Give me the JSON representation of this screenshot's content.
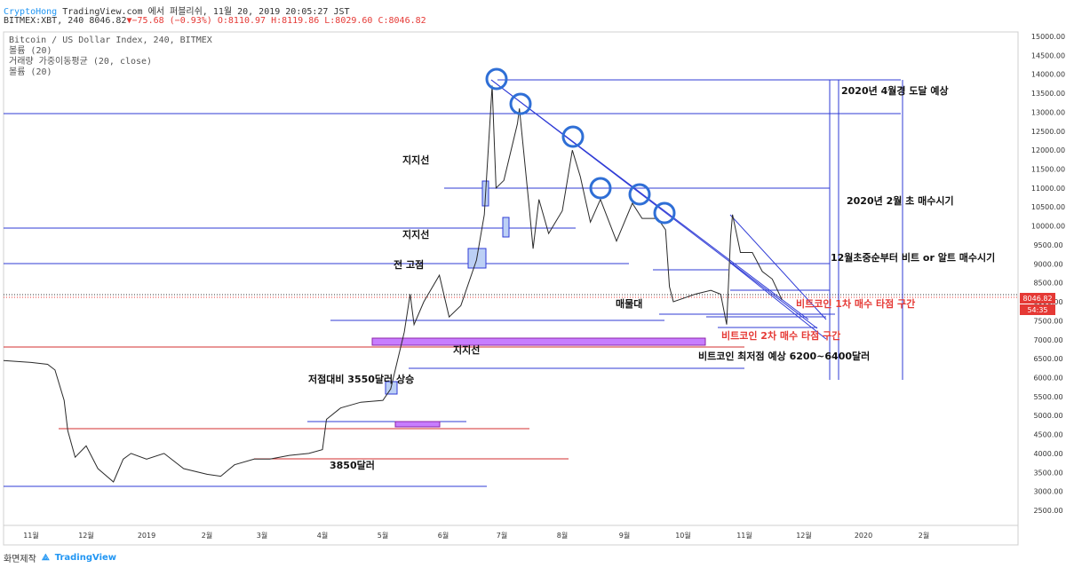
{
  "header": {
    "author": "CryptoHong",
    "published": "TradingView.com 에서 퍼블리쉬, 11월 20, 2019 20:05:27 JST",
    "symbol_info": "BITMEX:XBT, 240 8046.82",
    "change": "−75.68 (−0.93%)",
    "ohlc": "O:8110.97 H:8119.86 L:8029.60 C:8046.82"
  },
  "legend": {
    "line1": "Bitcoin / US Dollar Index, 240, BITMEX",
    "line2": "볼륨 (20)",
    "line3": "거래량 가중이동평균 (20, close)",
    "line4": "볼륨 (20)"
  },
  "price_labels": {
    "last_price": "8046.82",
    "countdown": "54:35"
  },
  "annotations": {
    "target_2020_04": "2020년 4월경 도달 예상",
    "buy_2020_02": "2020년 2월 초 매수시기",
    "buy_dec": "12월초중순부터 비트 or 알트 매수시기",
    "support1": "지지선",
    "support2": "지지선",
    "prev_high": "전 고점",
    "sell_wall": "매물대",
    "buy_zone_1": "비트코인 1차 매수 타점 구간",
    "buy_zone_2": "비트코인 2차 매수 타점 구간",
    "support3": "지지선",
    "lowest_est": "비트코인 최저점 예상 6200~6400달러",
    "rise_from_low": "저점대비 3550달러 상승",
    "price_3850": "3850달러"
  },
  "footer": {
    "made_with": "화면제작",
    "brand": "TradingView"
  },
  "chart_data": {
    "type": "line",
    "title": "Bitcoin / US Dollar Index, 240, BITMEX",
    "xlabel": "",
    "ylabel": "",
    "x_ticks": [
      "11월",
      "12월",
      "2019",
      "2월",
      "3월",
      "4월",
      "5월",
      "6월",
      "7월",
      "8월",
      "9월",
      "10월",
      "11월",
      "12월",
      "2020",
      "2월"
    ],
    "y_ticks": [
      2500,
      3000,
      3500,
      4000,
      4500,
      5000,
      5500,
      6000,
      6500,
      7000,
      7500,
      8000,
      8500,
      9000,
      9500,
      10000,
      10500,
      11000,
      11500,
      12000,
      12500,
      13000,
      13500,
      14000,
      14500,
      15000
    ],
    "ylim": [
      2000,
      15300
    ],
    "grid": false,
    "axis_position": "right",
    "series": [
      {
        "values": [
          [
            "2018-10-15",
            6450
          ],
          [
            "2018-11-01",
            6400
          ],
          [
            "2018-11-10",
            6350
          ],
          [
            "2018-11-14",
            6200
          ],
          [
            "2018-11-19",
            5400
          ],
          [
            "2018-11-21",
            4600
          ],
          [
            "2018-11-25",
            3900
          ],
          [
            "2018-12-01",
            4200
          ],
          [
            "2018-12-07",
            3600
          ],
          [
            "2018-12-15",
            3250
          ],
          [
            "2018-12-20",
            3850
          ],
          [
            "2018-12-24",
            4000
          ],
          [
            "2019-01-01",
            3850
          ],
          [
            "2019-01-10",
            4000
          ],
          [
            "2019-01-20",
            3600
          ],
          [
            "2019-02-01",
            3450
          ],
          [
            "2019-02-08",
            3400
          ],
          [
            "2019-02-15",
            3700
          ],
          [
            "2019-02-25",
            3850
          ],
          [
            "2019-03-05",
            3850
          ],
          [
            "2019-03-15",
            3950
          ],
          [
            "2019-03-25",
            4000
          ],
          [
            "2019-04-01",
            4100
          ],
          [
            "2019-04-03",
            4900
          ],
          [
            "2019-04-10",
            5200
          ],
          [
            "2019-04-20",
            5350
          ],
          [
            "2019-05-01",
            5400
          ],
          [
            "2019-05-05",
            5700
          ],
          [
            "2019-05-12",
            7200
          ],
          [
            "2019-05-15",
            8200
          ],
          [
            "2019-05-17",
            7400
          ],
          [
            "2019-05-22",
            8000
          ],
          [
            "2019-05-30",
            8700
          ],
          [
            "2019-06-04",
            7600
          ],
          [
            "2019-06-10",
            7900
          ],
          [
            "2019-06-18",
            9100
          ],
          [
            "2019-06-22",
            10300
          ],
          [
            "2019-06-26",
            13700
          ],
          [
            "2019-06-28",
            11000
          ],
          [
            "2019-07-02",
            11200
          ],
          [
            "2019-07-09",
            12700
          ],
          [
            "2019-07-10",
            13100
          ],
          [
            "2019-07-15",
            10500
          ],
          [
            "2019-07-17",
            9400
          ],
          [
            "2019-07-20",
            10700
          ],
          [
            "2019-07-25",
            9800
          ],
          [
            "2019-08-01",
            10400
          ],
          [
            "2019-08-06",
            12000
          ],
          [
            "2019-08-10",
            11300
          ],
          [
            "2019-08-15",
            10100
          ],
          [
            "2019-08-20",
            10700
          ],
          [
            "2019-08-28",
            9600
          ],
          [
            "2019-09-05",
            10600
          ],
          [
            "2019-09-10",
            10200
          ],
          [
            "2019-09-18",
            10200
          ],
          [
            "2019-09-22",
            9900
          ],
          [
            "2019-09-24",
            8400
          ],
          [
            "2019-09-26",
            8000
          ],
          [
            "2019-10-07",
            8200
          ],
          [
            "2019-10-15",
            8300
          ],
          [
            "2019-10-20",
            8200
          ],
          [
            "2019-10-23",
            7400
          ],
          [
            "2019-10-25",
            9700
          ],
          [
            "2019-10-26",
            10300
          ],
          [
            "2019-10-30",
            9300
          ],
          [
            "2019-11-05",
            9300
          ],
          [
            "2019-11-10",
            8800
          ],
          [
            "2019-11-15",
            8600
          ],
          [
            "2019-11-20",
            8046.82
          ]
        ]
      }
    ]
  }
}
